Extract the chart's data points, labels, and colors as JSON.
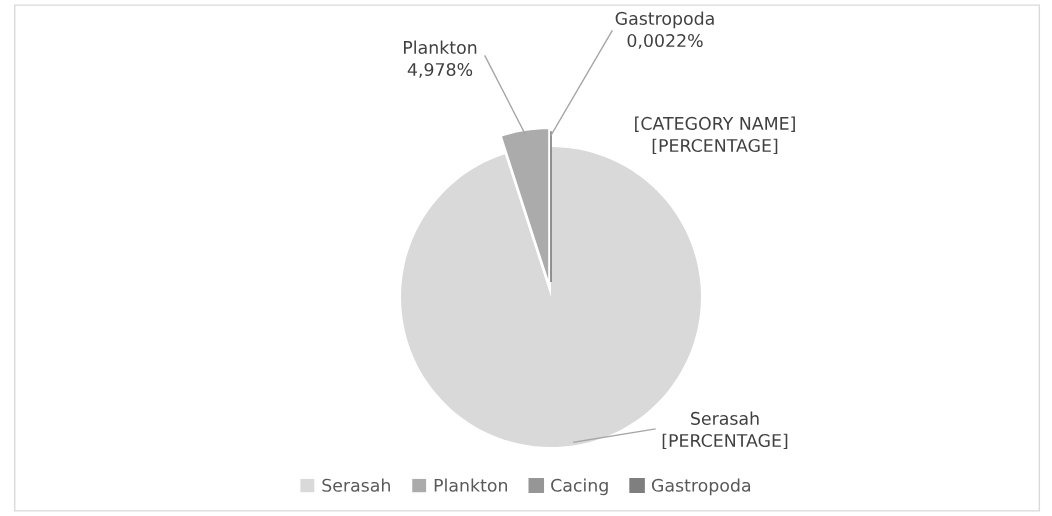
{
  "chart_data": {
    "type": "pie",
    "categories": [
      "Serasah",
      "Plankton",
      "Cacing",
      "Gastropoda"
    ],
    "values": [
      95.0198,
      4.978,
      0,
      0.0022
    ],
    "colors": [
      "#d9d9d9",
      "#ababab",
      "#969696",
      "#7f7f7f"
    ],
    "value_labels": [
      "Serasah\n[PERCENTAGE]",
      "Plankton\n4,978%",
      "[CATEGORY NAME]\n[PERCENTAGE]",
      "Gastropoda\n0,0022%"
    ],
    "legend": "bottom"
  }
}
